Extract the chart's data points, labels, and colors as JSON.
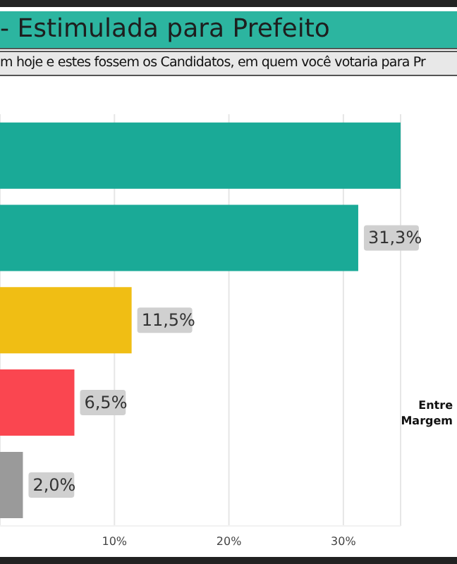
{
  "chart_data": {
    "type": "bar",
    "orientation": "horizontal",
    "title": "- Estimulada para Prefeito",
    "subtitle": "m hoje e estes fossem os Candidatos, em quem você votaria para Pr",
    "categories": [
      null,
      null,
      null,
      null,
      null
    ],
    "values": [
      35,
      31.3,
      11.5,
      6.5,
      2.0
    ],
    "colors": [
      "#1aaa97",
      "#1aaa97",
      "#f0be14",
      "#fa4650",
      "#9a9a9a"
    ],
    "value_labels": [
      null,
      "31,3%",
      "11,5%",
      "6,5%",
      "2,0%"
    ],
    "xlim": [
      0,
      35
    ],
    "xticks": [
      {
        "value": 10,
        "label": "10%"
      },
      {
        "value": 20,
        "label": "20%"
      },
      {
        "value": 30,
        "label": "30%"
      }
    ],
    "grid": "x",
    "annotations": [
      "Entre",
      "Margem"
    ]
  }
}
